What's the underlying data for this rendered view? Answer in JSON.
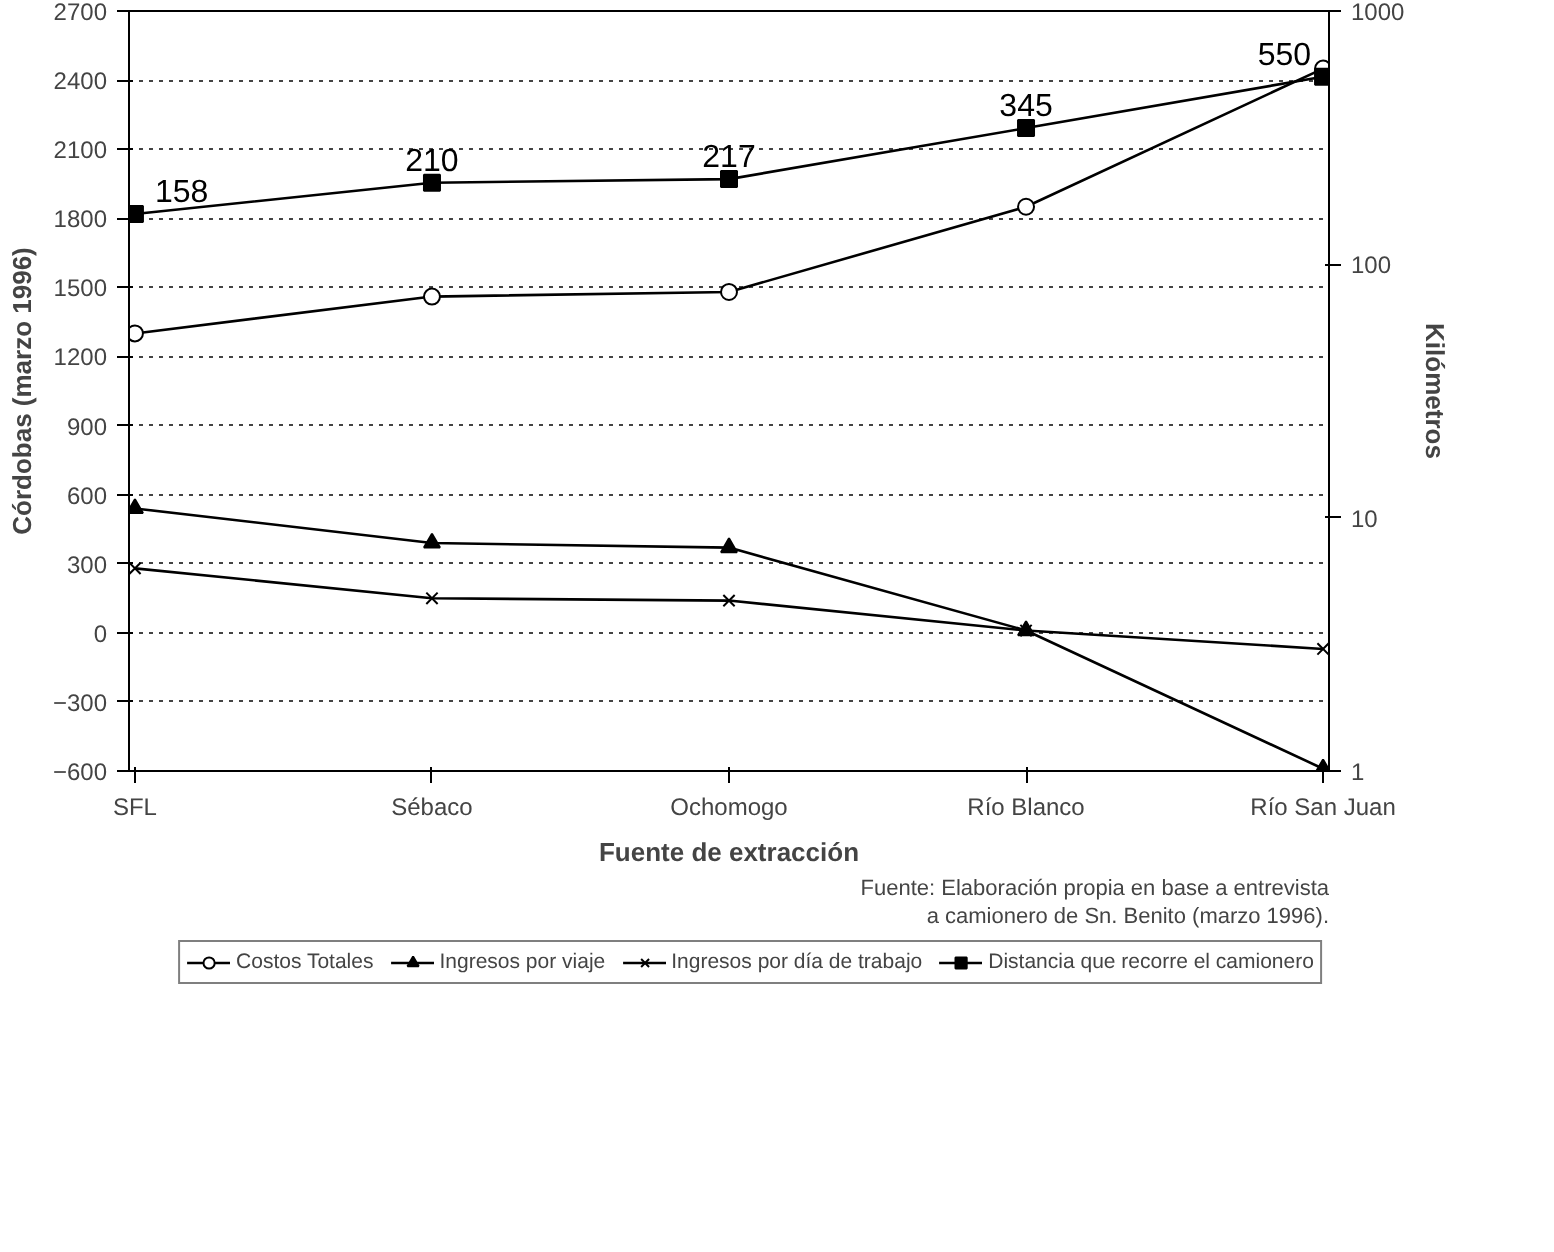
{
  "chart_data": {
    "type": "line",
    "xlabel": "Fuente de extracción",
    "ylabel": "Córdobas (marzo 1996)",
    "y2label": "Kilómetros",
    "categories": [
      "SFL",
      "Sébaco",
      "Ochomogo",
      "Río Blanco",
      "Río San Juan"
    ],
    "series": [
      {
        "name": "Costos Totales",
        "color": "#000000",
        "marker": "circle",
        "values": [
          1300,
          1460,
          1480,
          1850,
          2450
        ]
      },
      {
        "name": "Ingresos por viaje",
        "color": "#000000",
        "marker": "triangle",
        "values": [
          540,
          390,
          370,
          10,
          -590
        ]
      },
      {
        "name": "Ingresos por día de trabajo",
        "color": "#000000",
        "marker": "cross",
        "values": [
          280,
          150,
          140,
          10,
          -70
        ]
      },
      {
        "name": "Distancia que recorre el camionero",
        "color": "#000000",
        "marker": "square",
        "axis": "y2",
        "values": [
          158,
          210,
          217,
          345,
          550
        ],
        "value_labels": [
          "158",
          "210",
          "217",
          "345",
          "550"
        ]
      }
    ],
    "ylim": [
      -600,
      2700
    ],
    "yticks": [
      -600,
      -300,
      0,
      300,
      600,
      900,
      1200,
      1500,
      1800,
      2100,
      2400,
      2700
    ],
    "y2lim": [
      1,
      1000
    ],
    "y2ticks": [
      1,
      10,
      100,
      1000
    ],
    "log": "y2",
    "grid": "y",
    "legend": "bottom",
    "annotations": [
      "Fuente: Elaboración propia en base a entrevista a camionero de Sn. Benito (marzo 1996)."
    ]
  }
}
